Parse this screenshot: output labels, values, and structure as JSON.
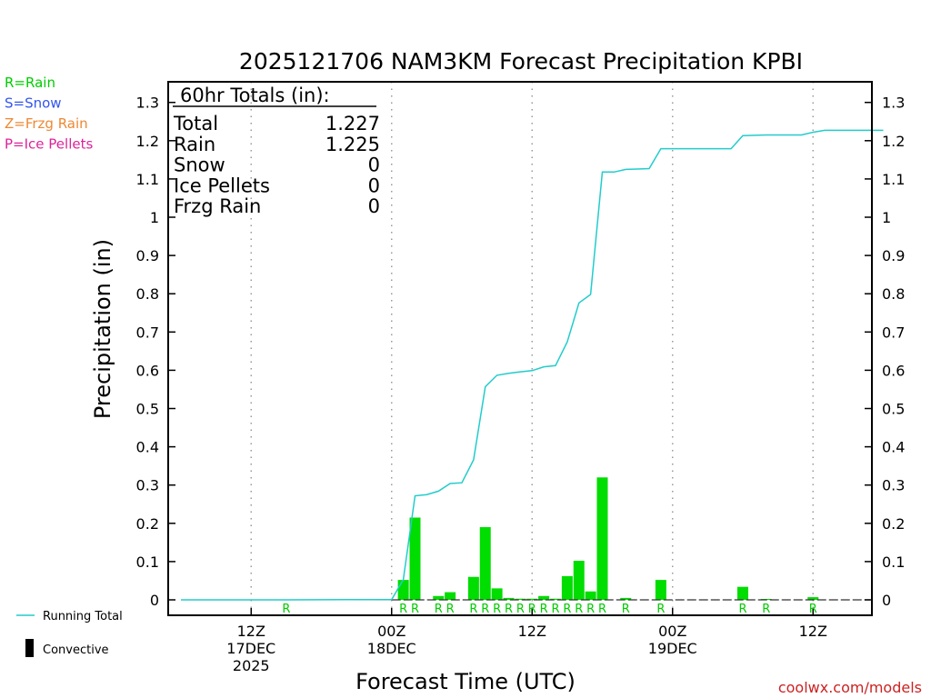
{
  "chart_data": {
    "type": "bar",
    "title": "2025121706 NAM3KM Forecast Precipitation KPBI",
    "xlabel": "Forecast Time (UTC)",
    "ylabel": "Precipitation (in)",
    "ylim": [
      -0.04,
      1.35
    ],
    "yticks": [
      0,
      0.1,
      0.2,
      0.3,
      0.4,
      0.5,
      0.6,
      0.7,
      0.8,
      0.9,
      1,
      1.1,
      1.2,
      1.3
    ],
    "ytick_labels": [
      "0",
      "0.1",
      "0.2",
      "0.3",
      "0.4",
      "0.5",
      "0.6",
      "0.7",
      "0.8",
      "0.9",
      "1",
      "1.1",
      "1.2",
      "1.3"
    ],
    "xlim_hours": [
      -0.5,
      60.5
    ],
    "xticks": [
      {
        "hour": 6,
        "lines": [
          "12Z",
          "17DEC",
          "2025"
        ]
      },
      {
        "hour": 18,
        "lines": [
          "00Z",
          "18DEC"
        ]
      },
      {
        "hour": 30,
        "lines": [
          "12Z"
        ]
      },
      {
        "hour": 42,
        "lines": [
          "00Z",
          "19DEC"
        ]
      },
      {
        "hour": 54,
        "lines": [
          "12Z"
        ]
      }
    ],
    "hourly_bars": [
      {
        "hour": 19,
        "value": 0.052,
        "type": "R"
      },
      {
        "hour": 20,
        "value": 0.215,
        "type": "R"
      },
      {
        "hour": 22,
        "value": 0.01,
        "type": "R"
      },
      {
        "hour": 23,
        "value": 0.02,
        "type": "R"
      },
      {
        "hour": 25,
        "value": 0.06,
        "type": "R"
      },
      {
        "hour": 26,
        "value": 0.19,
        "type": "R"
      },
      {
        "hour": 27,
        "value": 0.03,
        "type": "R"
      },
      {
        "hour": 28,
        "value": 0.005,
        "type": "R"
      },
      {
        "hour": 29,
        "value": 0.003,
        "type": "R"
      },
      {
        "hour": 30,
        "value": 0.003,
        "type": "R"
      },
      {
        "hour": 31,
        "value": 0.01,
        "type": "R"
      },
      {
        "hour": 32,
        "value": 0.003,
        "type": "R"
      },
      {
        "hour": 33,
        "value": 0.062,
        "type": "R"
      },
      {
        "hour": 34,
        "value": 0.102,
        "type": "R"
      },
      {
        "hour": 35,
        "value": 0.022,
        "type": "R"
      },
      {
        "hour": 36,
        "value": 0.32,
        "type": "R"
      },
      {
        "hour": 38,
        "value": 0.005,
        "type": "R"
      },
      {
        "hour": 41,
        "value": 0.052,
        "type": "R"
      },
      {
        "hour": 48,
        "value": 0.034,
        "type": "R"
      },
      {
        "hour": 50,
        "value": 0.002,
        "type": "R"
      },
      {
        "hour": 54,
        "value": 0.007,
        "type": "R"
      }
    ],
    "extra_type_markers": [
      {
        "hour": 9,
        "type": "R"
      }
    ],
    "running_total": {
      "name": "Running Total",
      "hours": [
        0,
        9,
        18,
        19,
        20,
        21,
        22,
        23,
        24,
        25,
        26,
        27,
        28,
        29,
        30,
        31,
        32,
        33,
        34,
        35,
        36,
        37,
        38,
        39,
        40,
        41,
        42,
        43,
        44,
        45,
        46,
        47,
        48,
        49,
        50,
        51,
        52,
        53,
        54,
        55,
        56,
        57,
        58,
        59,
        60
      ],
      "values": [
        0,
        0,
        0.001,
        0.053,
        0.272,
        0.275,
        0.284,
        0.304,
        0.306,
        0.366,
        0.557,
        0.587,
        0.592,
        0.596,
        0.599,
        0.609,
        0.612,
        0.674,
        0.776,
        0.798,
        1.118,
        1.118,
        1.125,
        1.126,
        1.127,
        1.179,
        1.179,
        1.179,
        1.179,
        1.179,
        1.179,
        1.179,
        1.213,
        1.214,
        1.215,
        1.215,
        1.215,
        1.215,
        1.222,
        1.227,
        1.227,
        1.227,
        1.227,
        1.227,
        1.227
      ]
    },
    "legend_entries": [
      {
        "label": "R=Rain",
        "color": "#00cc00"
      },
      {
        "label": "S=Snow",
        "color": "#3355ee"
      },
      {
        "label": "Z=Frzg Rain",
        "color": "#ee8833"
      },
      {
        "label": "P=Ice Pellets",
        "color": "#dd2299"
      }
    ],
    "legend_bottom": {
      "running_total_label": "Running Total",
      "convective_label": "Convective"
    },
    "totals_box": {
      "header": "60hr Totals (in):",
      "rows": [
        {
          "label": "Total",
          "value": "1.227"
        },
        {
          "label": "Rain",
          "value": "1.225"
        },
        {
          "label": "Snow",
          "value": "0"
        },
        {
          "label": "Ice Pellets",
          "value": "0"
        },
        {
          "label": "Frzg Rain",
          "value": "0"
        }
      ]
    },
    "watermark": "coolwx.com/models",
    "colors": {
      "bar": "#00dd00",
      "line": "#22cccc",
      "type_rain": "#00cc00",
      "watermark": "#cc2222",
      "axis": "#000000",
      "grid": "#999999"
    }
  }
}
